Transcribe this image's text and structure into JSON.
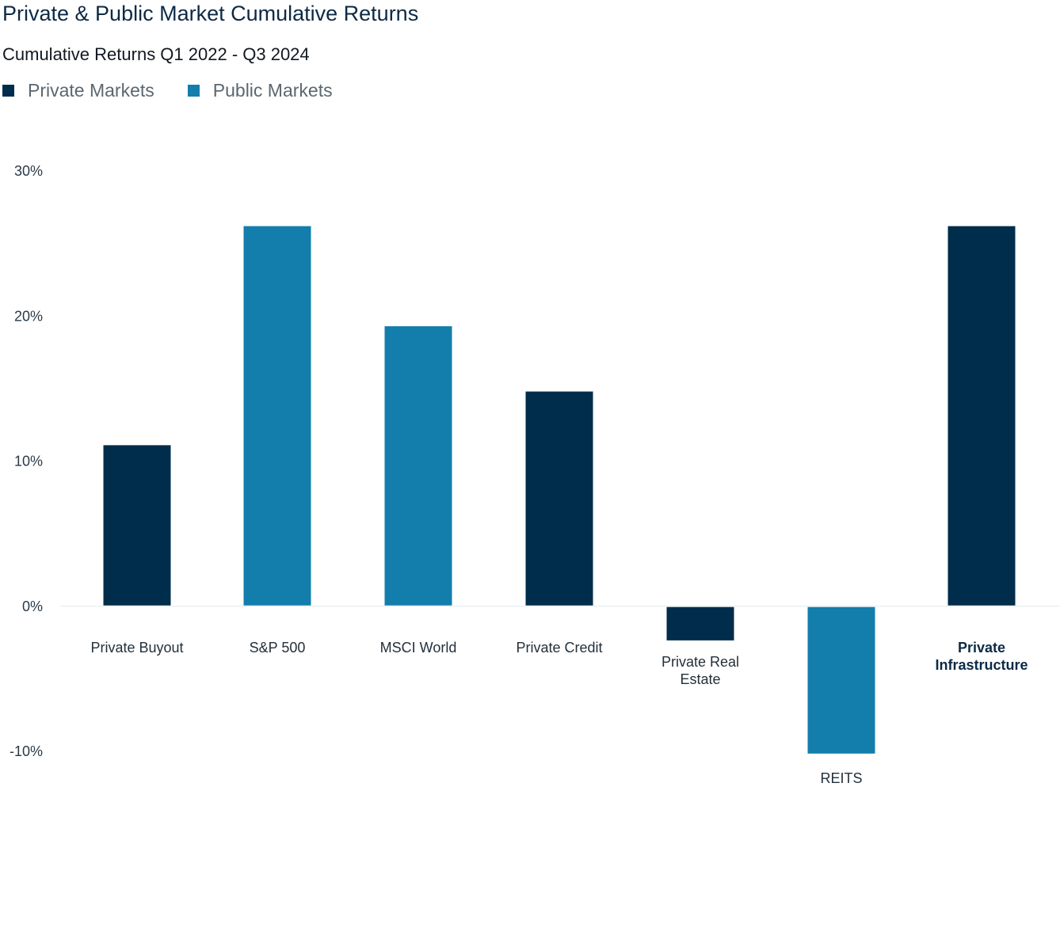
{
  "chart_data": {
    "type": "bar",
    "title": "Private & Public Market Cumulative Returns",
    "subtitle": "Cumulative Returns Q1 2022 - Q3 2024",
    "legend": {
      "position": "top-left",
      "items": [
        {
          "name": "Private Markets",
          "color": "#002d4b"
        },
        {
          "name": "Public Markets",
          "color": "#137dac"
        }
      ]
    },
    "categories": [
      {
        "label": [
          "Private Buyout"
        ],
        "group": "Private Markets",
        "bold": false
      },
      {
        "label": [
          "S&P 500"
        ],
        "group": "Public Markets",
        "bold": false
      },
      {
        "label": [
          "MSCI World"
        ],
        "group": "Public Markets",
        "bold": false
      },
      {
        "label": [
          "Private Credit"
        ],
        "group": "Private Markets",
        "bold": false
      },
      {
        "label": [
          "Private Real",
          "Estate"
        ],
        "group": "Private Markets",
        "bold": false
      },
      {
        "label": [
          "REITS"
        ],
        "group": "Public Markets",
        "bold": false
      },
      {
        "label": [
          "Private",
          "Infrastructure"
        ],
        "group": "Private Markets",
        "bold": true
      }
    ],
    "values": [
      11.1,
      26.2,
      19.3,
      14.8,
      -2.3,
      -10.1,
      26.2
    ],
    "y_ticks": [
      {
        "value": 30,
        "label": "30%"
      },
      {
        "value": 20,
        "label": "20%"
      },
      {
        "value": 10,
        "label": "10%"
      },
      {
        "value": 0,
        "label": "0%"
      },
      {
        "value": -10,
        "label": "-10%"
      }
    ],
    "ylim": [
      -10,
      30
    ],
    "grid": false
  }
}
